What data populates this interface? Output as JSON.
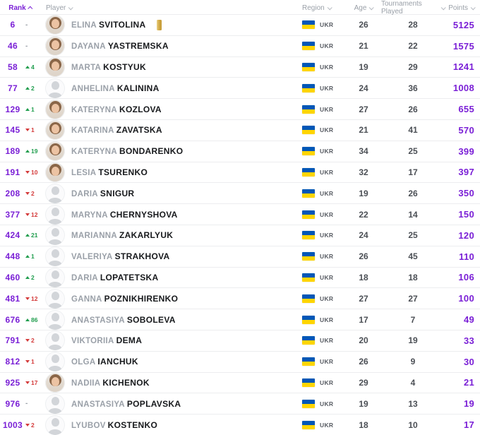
{
  "table": {
    "columns": {
      "rank": "Rank",
      "player": "Player",
      "region": "Region",
      "age": "Age",
      "tournaments": "Tournaments Played",
      "points": "Points"
    },
    "sort": {
      "column": "rank",
      "direction": "asc"
    }
  },
  "colors": {
    "accent_purple": "#7a1fd6",
    "change_up_green": "#1f9d4d",
    "change_down_red": "#d43a3a",
    "flag_blue": "#0057B7",
    "flag_yellow": "#FFD500"
  },
  "rows": [
    {
      "rank": "6",
      "change": "-",
      "change_dir": "none",
      "first": "ELINA",
      "last": "SVITOLINA",
      "badge": "gold-medal",
      "avatar": "photo",
      "region": "UKR",
      "age": "26",
      "tournaments": "28",
      "points": "5125"
    },
    {
      "rank": "46",
      "change": "-",
      "change_dir": "none",
      "first": "DAYANA",
      "last": "YASTREMSKA",
      "badge": "",
      "avatar": "photo",
      "region": "UKR",
      "age": "21",
      "tournaments": "22",
      "points": "1575"
    },
    {
      "rank": "58",
      "change": "4",
      "change_dir": "up",
      "first": "MARTA",
      "last": "KOSTYUK",
      "badge": "",
      "avatar": "photo",
      "region": "UKR",
      "age": "19",
      "tournaments": "29",
      "points": "1241"
    },
    {
      "rank": "77",
      "change": "2",
      "change_dir": "up",
      "first": "ANHELINA",
      "last": "KALININA",
      "badge": "",
      "avatar": "silhouette",
      "region": "UKR",
      "age": "24",
      "tournaments": "36",
      "points": "1008"
    },
    {
      "rank": "129",
      "change": "1",
      "change_dir": "up",
      "first": "KATERYNA",
      "last": "KOZLOVA",
      "badge": "",
      "avatar": "photo",
      "region": "UKR",
      "age": "27",
      "tournaments": "26",
      "points": "655"
    },
    {
      "rank": "145",
      "change": "1",
      "change_dir": "down",
      "first": "KATARINA",
      "last": "ZAVATSKA",
      "badge": "",
      "avatar": "photo",
      "region": "UKR",
      "age": "21",
      "tournaments": "41",
      "points": "570"
    },
    {
      "rank": "189",
      "change": "19",
      "change_dir": "up",
      "first": "KATERYNA",
      "last": "BONDARENKO",
      "badge": "",
      "avatar": "photo",
      "region": "UKR",
      "age": "34",
      "tournaments": "25",
      "points": "399"
    },
    {
      "rank": "191",
      "change": "10",
      "change_dir": "down",
      "first": "LESIA",
      "last": "TSURENKO",
      "badge": "",
      "avatar": "photo",
      "region": "UKR",
      "age": "32",
      "tournaments": "17",
      "points": "397"
    },
    {
      "rank": "208",
      "change": "2",
      "change_dir": "down",
      "first": "DARIA",
      "last": "SNIGUR",
      "badge": "",
      "avatar": "silhouette",
      "region": "UKR",
      "age": "19",
      "tournaments": "26",
      "points": "350"
    },
    {
      "rank": "377",
      "change": "12",
      "change_dir": "down",
      "first": "MARYNA",
      "last": "CHERNYSHOVA",
      "badge": "",
      "avatar": "silhouette",
      "region": "UKR",
      "age": "22",
      "tournaments": "14",
      "points": "150"
    },
    {
      "rank": "424",
      "change": "21",
      "change_dir": "up",
      "first": "MARIANNA",
      "last": "ZAKARLYUK",
      "badge": "",
      "avatar": "silhouette",
      "region": "UKR",
      "age": "24",
      "tournaments": "25",
      "points": "120"
    },
    {
      "rank": "448",
      "change": "1",
      "change_dir": "up",
      "first": "VALERIYA",
      "last": "STRAKHOVA",
      "badge": "",
      "avatar": "silhouette",
      "region": "UKR",
      "age": "26",
      "tournaments": "45",
      "points": "110"
    },
    {
      "rank": "460",
      "change": "2",
      "change_dir": "up",
      "first": "DARIA",
      "last": "LOPATETSKA",
      "badge": "",
      "avatar": "silhouette",
      "region": "UKR",
      "age": "18",
      "tournaments": "18",
      "points": "106"
    },
    {
      "rank": "481",
      "change": "12",
      "change_dir": "down",
      "first": "GANNA",
      "last": "POZNIKHIRENKO",
      "badge": "",
      "avatar": "silhouette",
      "region": "UKR",
      "age": "27",
      "tournaments": "27",
      "points": "100"
    },
    {
      "rank": "676",
      "change": "86",
      "change_dir": "up",
      "first": "ANASTASIYA",
      "last": "SOBOLEVA",
      "badge": "",
      "avatar": "silhouette",
      "region": "UKR",
      "age": "17",
      "tournaments": "7",
      "points": "49"
    },
    {
      "rank": "791",
      "change": "2",
      "change_dir": "down",
      "first": "VIKTORIIA",
      "last": "DEMA",
      "badge": "",
      "avatar": "silhouette",
      "region": "UKR",
      "age": "20",
      "tournaments": "19",
      "points": "33"
    },
    {
      "rank": "812",
      "change": "1",
      "change_dir": "down",
      "first": "OLGA",
      "last": "IANCHUK",
      "badge": "",
      "avatar": "silhouette",
      "region": "UKR",
      "age": "26",
      "tournaments": "9",
      "points": "30"
    },
    {
      "rank": "925",
      "change": "17",
      "change_dir": "down",
      "first": "NADIIA",
      "last": "KICHENOK",
      "badge": "",
      "avatar": "photo",
      "region": "UKR",
      "age": "29",
      "tournaments": "4",
      "points": "21"
    },
    {
      "rank": "976",
      "change": "-",
      "change_dir": "none",
      "first": "ANASTASIYA",
      "last": "POPLAVSKA",
      "badge": "",
      "avatar": "silhouette",
      "region": "UKR",
      "age": "19",
      "tournaments": "13",
      "points": "19"
    },
    {
      "rank": "1003",
      "change": "2",
      "change_dir": "down",
      "first": "LYUBOV",
      "last": "KOSTENKO",
      "badge": "",
      "avatar": "silhouette",
      "region": "UKR",
      "age": "18",
      "tournaments": "10",
      "points": "17"
    }
  ]
}
